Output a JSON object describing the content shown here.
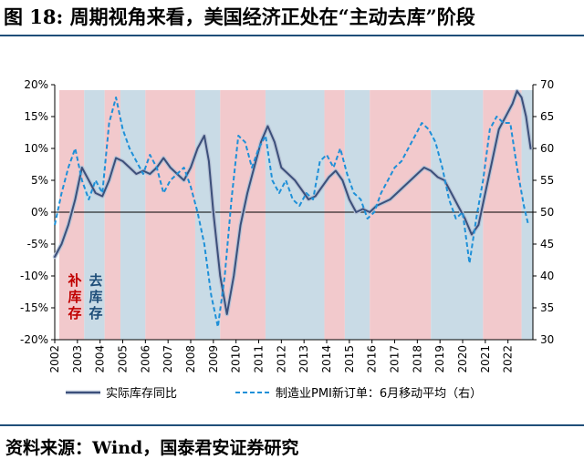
{
  "header": {
    "title": "图 18:  周期视角来看，美国经济正处在“主动去库”阶段"
  },
  "footer": {
    "source": "资料来源：Wind，国泰君安证券研究"
  },
  "colors": {
    "replenish": "#f2c9cc",
    "destock": "#c9dbe6",
    "inventory_line": "#3c4f7a",
    "pmi_line": "#1e90d8",
    "axis": "#000000"
  },
  "annotations": {
    "replenish_label": "补库存",
    "destock_label": "去库存"
  },
  "chart_data": {
    "type": "line",
    "title": "",
    "xlabel": "",
    "ylabel_left": "",
    "ylabel_right": "",
    "x_ticks": [
      "2002",
      "2003",
      "2004",
      "2005",
      "2006",
      "2007",
      "2008",
      "2009",
      "2010",
      "2011",
      "2012",
      "2013",
      "2014",
      "2015",
      "2016",
      "2017",
      "2018",
      "2019",
      "2020",
      "2021",
      "2022"
    ],
    "y_left": {
      "min": -20,
      "max": 20,
      "ticks": [
        "-20%",
        "-15%",
        "-10%",
        "-5%",
        "0%",
        "5%",
        "10%",
        "15%",
        "20%"
      ],
      "tick_values": [
        -20,
        -15,
        -10,
        -5,
        0,
        5,
        10,
        15,
        20
      ]
    },
    "y_right": {
      "min": 30,
      "max": 70,
      "ticks": [
        "30",
        "35",
        "40",
        "45",
        "50",
        "55",
        "60",
        "65",
        "70"
      ],
      "tick_values": [
        30,
        35,
        40,
        45,
        50,
        55,
        60,
        65,
        70
      ]
    },
    "x_range": [
      2002,
      2023.1
    ],
    "phases": [
      {
        "type": "replenish",
        "start": 2002.2,
        "end": 2003.3
      },
      {
        "type": "destock",
        "start": 2003.3,
        "end": 2004.2
      },
      {
        "type": "replenish",
        "start": 2004.2,
        "end": 2004.9
      },
      {
        "type": "destock",
        "start": 2004.9,
        "end": 2006.0
      },
      {
        "type": "replenish",
        "start": 2006.0,
        "end": 2008.2
      },
      {
        "type": "destock",
        "start": 2008.2,
        "end": 2009.3
      },
      {
        "type": "replenish",
        "start": 2009.3,
        "end": 2011.3
      },
      {
        "type": "destock",
        "start": 2011.3,
        "end": 2013.9
      },
      {
        "type": "replenish",
        "start": 2013.9,
        "end": 2014.8
      },
      {
        "type": "destock",
        "start": 2014.8,
        "end": 2015.9
      },
      {
        "type": "replenish",
        "start": 2015.9,
        "end": 2018.6
      },
      {
        "type": "destock",
        "start": 2018.6,
        "end": 2020.9
      },
      {
        "type": "replenish",
        "start": 2020.9,
        "end": 2022.6
      },
      {
        "type": "destock",
        "start": 2022.6,
        "end": 2023.1
      }
    ],
    "series": [
      {
        "name": "实际库存同比",
        "axis": "left",
        "style": "solid",
        "color": "#3c4f7a",
        "points": [
          [
            2002.0,
            -7.0
          ],
          [
            2002.3,
            -5.0
          ],
          [
            2002.6,
            -2.0
          ],
          [
            2002.9,
            2.0
          ],
          [
            2003.2,
            7.0
          ],
          [
            2003.5,
            5.0
          ],
          [
            2003.8,
            3.0
          ],
          [
            2004.1,
            2.5
          ],
          [
            2004.4,
            5.0
          ],
          [
            2004.7,
            8.5
          ],
          [
            2005.0,
            8.0
          ],
          [
            2005.3,
            7.0
          ],
          [
            2005.6,
            6.0
          ],
          [
            2005.9,
            6.5
          ],
          [
            2006.2,
            6.0
          ],
          [
            2006.5,
            7.0
          ],
          [
            2006.8,
            8.5
          ],
          [
            2007.1,
            7.0
          ],
          [
            2007.4,
            6.0
          ],
          [
            2007.7,
            5.0
          ],
          [
            2008.0,
            7.0
          ],
          [
            2008.3,
            10.0
          ],
          [
            2008.6,
            12.0
          ],
          [
            2008.8,
            8.0
          ],
          [
            2009.0,
            0.0
          ],
          [
            2009.3,
            -10.0
          ],
          [
            2009.6,
            -16.0
          ],
          [
            2009.9,
            -10.0
          ],
          [
            2010.2,
            -2.0
          ],
          [
            2010.5,
            3.0
          ],
          [
            2010.8,
            7.0
          ],
          [
            2011.1,
            11.0
          ],
          [
            2011.4,
            13.5
          ],
          [
            2011.7,
            11.0
          ],
          [
            2012.0,
            7.0
          ],
          [
            2012.3,
            6.0
          ],
          [
            2012.6,
            5.0
          ],
          [
            2012.9,
            3.5
          ],
          [
            2013.2,
            2.0
          ],
          [
            2013.5,
            2.5
          ],
          [
            2013.8,
            4.0
          ],
          [
            2014.1,
            5.5
          ],
          [
            2014.4,
            6.5
          ],
          [
            2014.7,
            5.0
          ],
          [
            2015.0,
            2.0
          ],
          [
            2015.3,
            0.0
          ],
          [
            2015.6,
            0.5
          ],
          [
            2015.9,
            0.0
          ],
          [
            2016.2,
            1.0
          ],
          [
            2016.5,
            1.5
          ],
          [
            2016.8,
            2.0
          ],
          [
            2017.1,
            3.0
          ],
          [
            2017.4,
            4.0
          ],
          [
            2017.7,
            5.0
          ],
          [
            2018.0,
            6.0
          ],
          [
            2018.3,
            7.0
          ],
          [
            2018.6,
            6.5
          ],
          [
            2018.9,
            5.5
          ],
          [
            2019.2,
            5.0
          ],
          [
            2019.5,
            3.0
          ],
          [
            2019.8,
            1.0
          ],
          [
            2020.1,
            -1.0
          ],
          [
            2020.4,
            -3.5
          ],
          [
            2020.7,
            -2.0
          ],
          [
            2021.0,
            3.0
          ],
          [
            2021.3,
            8.0
          ],
          [
            2021.6,
            13.0
          ],
          [
            2021.9,
            15.0
          ],
          [
            2022.2,
            17.0
          ],
          [
            2022.4,
            19.0
          ],
          [
            2022.6,
            18.0
          ],
          [
            2022.8,
            15.0
          ],
          [
            2023.0,
            10.0
          ]
        ]
      },
      {
        "name": "制造业PMI新订单：6月移动平均（右）",
        "axis": "right",
        "style": "dashed",
        "color": "#1e90d8",
        "points": [
          [
            2002.0,
            48.0
          ],
          [
            2002.3,
            53.0
          ],
          [
            2002.6,
            57.0
          ],
          [
            2002.9,
            60.0
          ],
          [
            2003.2,
            55.0
          ],
          [
            2003.5,
            52.0
          ],
          [
            2003.8,
            55.0
          ],
          [
            2004.1,
            53.0
          ],
          [
            2004.4,
            64.0
          ],
          [
            2004.7,
            68.0
          ],
          [
            2005.0,
            63.0
          ],
          [
            2005.3,
            60.0
          ],
          [
            2005.6,
            58.0
          ],
          [
            2005.9,
            56.0
          ],
          [
            2006.2,
            59.0
          ],
          [
            2006.5,
            57.0
          ],
          [
            2006.8,
            53.0
          ],
          [
            2007.1,
            55.0
          ],
          [
            2007.4,
            56.0
          ],
          [
            2007.7,
            57.0
          ],
          [
            2008.0,
            54.0
          ],
          [
            2008.3,
            50.0
          ],
          [
            2008.6,
            45.0
          ],
          [
            2008.9,
            37.0
          ],
          [
            2009.2,
            32.0
          ],
          [
            2009.5,
            40.0
          ],
          [
            2009.8,
            52.0
          ],
          [
            2010.1,
            62.0
          ],
          [
            2010.4,
            61.0
          ],
          [
            2010.7,
            57.0
          ],
          [
            2011.0,
            60.0
          ],
          [
            2011.3,
            62.0
          ],
          [
            2011.6,
            55.0
          ],
          [
            2011.9,
            53.0
          ],
          [
            2012.2,
            55.0
          ],
          [
            2012.5,
            52.0
          ],
          [
            2012.8,
            51.0
          ],
          [
            2013.1,
            53.0
          ],
          [
            2013.4,
            52.0
          ],
          [
            2013.7,
            58.0
          ],
          [
            2014.0,
            59.0
          ],
          [
            2014.3,
            57.0
          ],
          [
            2014.6,
            60.0
          ],
          [
            2014.9,
            56.0
          ],
          [
            2015.2,
            53.0
          ],
          [
            2015.5,
            52.0
          ],
          [
            2015.8,
            49.0
          ],
          [
            2016.1,
            50.0
          ],
          [
            2016.4,
            53.0
          ],
          [
            2016.7,
            55.0
          ],
          [
            2017.0,
            57.0
          ],
          [
            2017.3,
            58.0
          ],
          [
            2017.6,
            60.0
          ],
          [
            2017.9,
            62.0
          ],
          [
            2018.2,
            64.0
          ],
          [
            2018.5,
            63.0
          ],
          [
            2018.8,
            61.0
          ],
          [
            2019.1,
            57.0
          ],
          [
            2019.4,
            52.0
          ],
          [
            2019.7,
            49.0
          ],
          [
            2020.0,
            50.0
          ],
          [
            2020.3,
            42.0
          ],
          [
            2020.6,
            49.0
          ],
          [
            2020.9,
            55.0
          ],
          [
            2021.2,
            63.0
          ],
          [
            2021.5,
            65.0
          ],
          [
            2021.8,
            64.0
          ],
          [
            2022.1,
            64.0
          ],
          [
            2022.4,
            57.0
          ],
          [
            2022.7,
            51.0
          ],
          [
            2022.9,
            48.0
          ]
        ]
      }
    ],
    "legend": [
      {
        "label": "实际库存同比",
        "style": "solid"
      },
      {
        "label": "制造业PMI新订单：6月移动平均（右）",
        "style": "dashed"
      }
    ],
    "legend_position": "bottom"
  }
}
